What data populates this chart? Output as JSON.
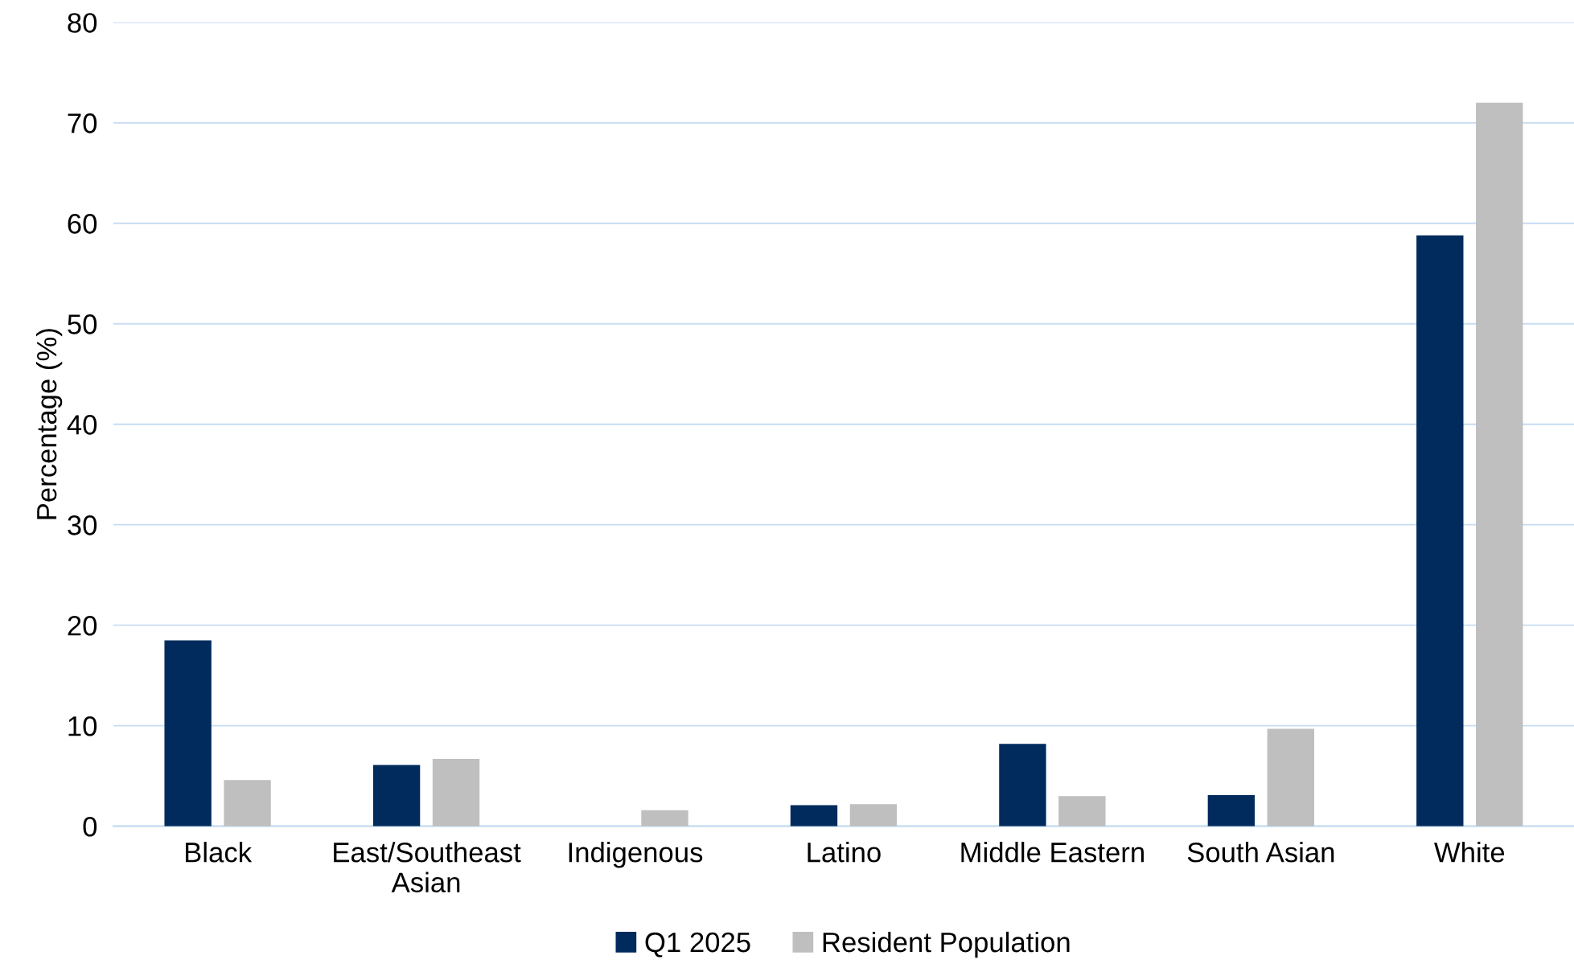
{
  "chart_data": {
    "type": "bar",
    "ylabel": "Percentage (%)",
    "categories": [
      "Black",
      "East/Southeast\nAsian",
      "Indigenous",
      "Latino",
      "Middle Eastern",
      "South Asian",
      "White"
    ],
    "series": [
      {
        "name": "Q1 2025",
        "color": "#002b5c",
        "values": [
          18.5,
          6.1,
          0,
          2.1,
          8.2,
          3.1,
          58.8
        ]
      },
      {
        "name": "Resident Population",
        "color": "#bfbfbf",
        "values": [
          4.6,
          6.7,
          1.6,
          2.2,
          3.0,
          9.7,
          72.0
        ]
      }
    ],
    "ylim": [
      0,
      80
    ],
    "yticks": [
      0,
      10,
      20,
      30,
      40,
      50,
      60,
      70,
      80
    ],
    "grid": "y",
    "legend": "bottom"
  }
}
